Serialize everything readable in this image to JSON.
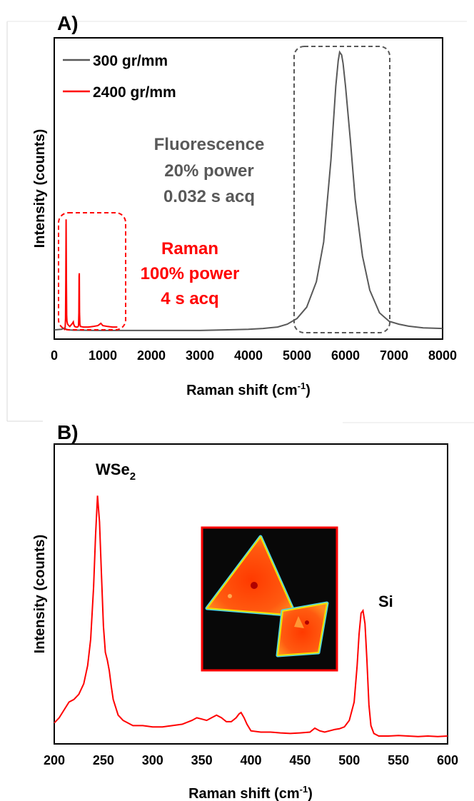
{
  "chart_data": [
    {
      "panel_label": "A)",
      "type": "line",
      "xlabel": "Raman shift (cm",
      "xlabel_sup": "-1",
      "xlabel_end": ")",
      "ylabel": "Intensity (counts)",
      "xlim": [
        0,
        8000
      ],
      "xticks": [
        "0",
        "1000",
        "2000",
        "3000",
        "4000",
        "5000",
        "6000",
        "7000",
        "8000"
      ],
      "legend_position": "top-left",
      "series": [
        {
          "name": "300 gr/mm",
          "color": "#595959",
          "x": [
            0,
            150,
            200,
            250,
            300,
            400,
            500,
            1000,
            2000,
            3000,
            3500,
            4000,
            4300,
            4600,
            4800,
            5000,
            5200,
            5400,
            5550,
            5700,
            5800,
            5850,
            5880,
            5920,
            5950,
            6000,
            6100,
            6200,
            6350,
            6500,
            6700,
            6900,
            7100,
            7300,
            7600,
            8000
          ],
          "y": [
            0.02,
            0.022,
            0.026,
            0.022,
            0.02,
            0.019,
            0.019,
            0.018,
            0.018,
            0.018,
            0.02,
            0.022,
            0.025,
            0.03,
            0.04,
            0.06,
            0.1,
            0.19,
            0.33,
            0.62,
            0.88,
            0.97,
            1.0,
            0.99,
            0.96,
            0.88,
            0.69,
            0.48,
            0.28,
            0.16,
            0.08,
            0.05,
            0.04,
            0.033,
            0.027,
            0.025
          ]
        },
        {
          "name": "2400 gr/mm",
          "color": "#ff0000",
          "x": [
            200,
            215,
            225,
            232,
            238,
            244,
            250,
            256,
            262,
            275,
            300,
            320,
            340,
            355,
            370,
            385,
            392,
            400,
            420,
            450,
            480,
            500,
            508,
            512,
            516,
            520,
            528,
            540,
            600,
            700,
            800,
            900,
            960,
            1000,
            1100,
            1200,
            1300
          ],
          "y": [
            0.02,
            0.022,
            0.03,
            0.06,
            0.2,
            0.41,
            0.2,
            0.07,
            0.05,
            0.04,
            0.035,
            0.032,
            0.036,
            0.039,
            0.042,
            0.046,
            0.048,
            0.04,
            0.032,
            0.03,
            0.03,
            0.034,
            0.08,
            0.21,
            0.22,
            0.08,
            0.04,
            0.032,
            0.03,
            0.03,
            0.032,
            0.035,
            0.043,
            0.035,
            0.032,
            0.03,
            0.03
          ]
        }
      ],
      "annotations": [
        {
          "id": "fluorescence",
          "lines": [
            "Fluorescence",
            "20% power",
            "0.032 s acq"
          ],
          "color": "#595959"
        },
        {
          "id": "raman",
          "lines": [
            "Raman",
            "100% power",
            "4 s acq"
          ],
          "color": "#ff0000"
        }
      ]
    },
    {
      "panel_label": "B)",
      "type": "line",
      "xlabel": "Raman shift (cm",
      "xlabel_sup": "-1",
      "xlabel_end": ")",
      "ylabel": "Intensity (counts)",
      "xlim": [
        200,
        600
      ],
      "xticks": [
        "200",
        "250",
        "300",
        "350",
        "400",
        "450",
        "500",
        "550",
        "600"
      ],
      "series": [
        {
          "color": "#ff0000",
          "x": [
            200,
            205,
            210,
            215,
            220,
            225,
            230,
            234,
            237,
            240,
            242,
            244,
            246,
            248,
            250,
            252,
            254,
            256,
            258,
            260,
            265,
            270,
            275,
            280,
            290,
            300,
            310,
            320,
            330,
            340,
            345,
            350,
            355,
            360,
            365,
            370,
            375,
            380,
            385,
            388,
            390,
            393,
            396,
            400,
            410,
            420,
            430,
            440,
            450,
            460,
            465,
            470,
            475,
            480,
            485,
            490,
            495,
            500,
            505,
            508,
            510,
            512,
            514,
            516,
            518,
            520,
            522,
            525,
            530,
            540,
            550,
            560,
            570,
            580,
            590,
            600
          ],
          "y": [
            0.08,
            0.1,
            0.13,
            0.16,
            0.17,
            0.19,
            0.23,
            0.3,
            0.4,
            0.6,
            0.8,
            0.95,
            0.85,
            0.65,
            0.45,
            0.35,
            0.32,
            0.28,
            0.22,
            0.17,
            0.11,
            0.09,
            0.08,
            0.07,
            0.07,
            0.065,
            0.065,
            0.07,
            0.075,
            0.09,
            0.1,
            0.095,
            0.09,
            0.1,
            0.11,
            0.1,
            0.085,
            0.085,
            0.1,
            0.115,
            0.12,
            0.1,
            0.075,
            0.05,
            0.045,
            0.045,
            0.042,
            0.04,
            0.042,
            0.045,
            0.06,
            0.05,
            0.045,
            0.05,
            0.055,
            0.058,
            0.065,
            0.09,
            0.16,
            0.3,
            0.42,
            0.5,
            0.51,
            0.46,
            0.32,
            0.15,
            0.07,
            0.04,
            0.03,
            0.03,
            0.032,
            0.03,
            0.028,
            0.03,
            0.028,
            0.03
          ]
        }
      ],
      "annotations": [
        {
          "id": "wse2",
          "text": "WSe",
          "sub": "2"
        },
        {
          "id": "si",
          "text": "Si"
        }
      ],
      "inset": {
        "description_free": true,
        "frame_color": "#ff0000"
      }
    }
  ]
}
